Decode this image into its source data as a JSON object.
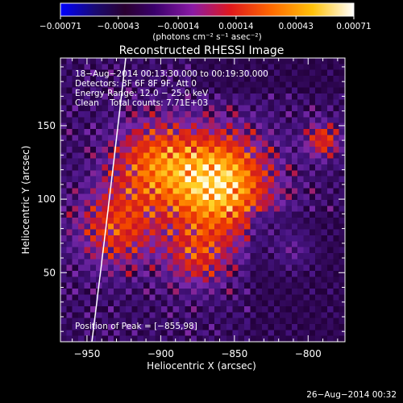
{
  "chart_data": {
    "type": "heatmap",
    "title": "Reconstructed RHESSI Image",
    "xlabel": "Heliocentric X (arcsec)",
    "ylabel": "Heliocentric Y (arcsec)",
    "xlim": [
      -968,
      -775
    ],
    "ylim": [
      3,
      196
    ],
    "xticks": [
      -950,
      -900,
      -850,
      -800
    ],
    "xtick_labels": [
      "−950",
      "−900",
      "−850",
      "−800"
    ],
    "yticks": [
      50,
      100,
      150
    ],
    "ytick_labels": [
      "50",
      "100",
      "150"
    ],
    "colorbar": {
      "ticks": [
        -0.00071,
        -0.00043,
        -0.00014,
        0.00014,
        0.00043,
        0.00071
      ],
      "tick_labels": [
        "−0.00071",
        "−0.00043",
        "−0.00014",
        "0.00014",
        "0.00043",
        "0.00071"
      ],
      "range": [
        -0.00071,
        0.00071
      ],
      "units_label": "(photons cm⁻² s⁻¹ asec⁻²)"
    },
    "info_lines": [
      "18−Aug−2014 00:13:30.000 to 00:19:30.000",
      "Detectors: 3F 6F 8F 9F, Att 0",
      "Energy Range: 12.0 − 25.0 keV",
      "Clean    Total counts: 7.71E+03"
    ],
    "peak_label": "Position of Peak = [−855,98]",
    "peak": [
      -855,
      98
    ],
    "limb_visible": true,
    "colormap": [
      "#3a005e",
      "#7a1fa0",
      "#d81e1e",
      "#ff8a00",
      "#ffd23a",
      "#ffffff"
    ]
  },
  "footer": {
    "date": "26−Aug−2014 00:32"
  }
}
